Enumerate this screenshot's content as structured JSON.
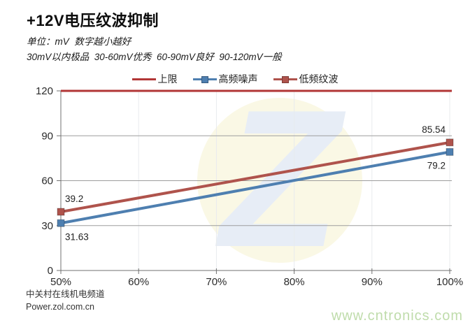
{
  "header": {
    "title": "+12V电压纹波抑制",
    "subtitle": "单位：mV  数字越小越好",
    "scale_note": "30mV以内极品  30-60mV优秀  60-90mV良好  90-120mV一般"
  },
  "legend": [
    {
      "label": "上限",
      "color": "#B23636",
      "marker": "line"
    },
    {
      "label": "高频噪声",
      "color": "#4E7FB0",
      "marker": "square"
    },
    {
      "label": "低频纹波",
      "color": "#AF534C",
      "marker": "square"
    }
  ],
  "chart_data": {
    "type": "line",
    "title": "+12V电压纹波抑制",
    "xlabel": "",
    "ylabel": "",
    "unit": "mV",
    "x_ticks": [
      "50%",
      "60%",
      "70%",
      "80%",
      "90%",
      "100%"
    ],
    "y_ticks": [
      0,
      30,
      60,
      90,
      120
    ],
    "ylim": [
      0,
      120
    ],
    "grid": true,
    "legend_position": "top",
    "series": [
      {
        "name": "上限",
        "color": "#B23636",
        "marker": "none",
        "full_width": true,
        "x": [
          "50%",
          "100%"
        ],
        "values": [
          120,
          120
        ],
        "point_labels": [
          "",
          ""
        ]
      },
      {
        "name": "高频噪声",
        "color": "#4E7FB0",
        "marker": "square",
        "x": [
          "50%",
          "100%"
        ],
        "values": [
          31.63,
          79.2
        ],
        "point_labels": [
          "31.63",
          "79.2"
        ],
        "label_side": "below"
      },
      {
        "name": "低频纹波",
        "color": "#AF534C",
        "marker": "square",
        "x": [
          "50%",
          "100%"
        ],
        "values": [
          39.2,
          85.54
        ],
        "point_labels": [
          "39.2",
          "85.54"
        ],
        "label_side": "above"
      }
    ],
    "watermark": {
      "text": "Z",
      "circle_color": "#FAF8E5",
      "z_color": "#E7EDF6"
    }
  },
  "footer": {
    "channel": "中关村在线机电频道",
    "site": "Power.zol.com.cn",
    "watermark_url": "www.cntronics.com",
    "url_color": "#BFDCAB"
  }
}
